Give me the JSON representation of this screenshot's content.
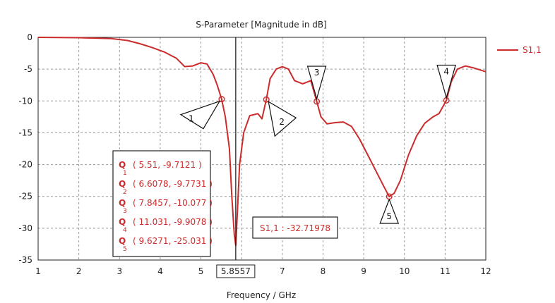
{
  "chart_data": {
    "type": "line",
    "title": "S-Parameter [Magnitude in dB]",
    "xlabel": "Frequency / GHz",
    "ylabel": "",
    "xlim": [
      1,
      12
    ],
    "ylim": [
      -35,
      0
    ],
    "x_ticks": [
      1,
      2,
      3,
      4,
      5,
      6,
      7,
      8,
      9,
      10,
      11,
      12
    ],
    "y_ticks": [
      0,
      -5,
      -10,
      -15,
      -20,
      -25,
      -30,
      -35
    ],
    "grid": true,
    "legend_position": "right",
    "series": [
      {
        "name": "S1,1",
        "color": "#cc2b2b",
        "points": [
          [
            1.0,
            0.0
          ],
          [
            2.0,
            -0.05
          ],
          [
            2.8,
            -0.2
          ],
          [
            3.2,
            -0.5
          ],
          [
            3.5,
            -1.0
          ],
          [
            3.8,
            -1.6
          ],
          [
            4.1,
            -2.3
          ],
          [
            4.4,
            -3.3
          ],
          [
            4.6,
            -4.6
          ],
          [
            4.8,
            -4.5
          ],
          [
            5.0,
            -4.0
          ],
          [
            5.15,
            -4.2
          ],
          [
            5.3,
            -5.8
          ],
          [
            5.4,
            -7.5
          ],
          [
            5.51,
            -9.7121
          ],
          [
            5.6,
            -12.5
          ],
          [
            5.7,
            -17.5
          ],
          [
            5.76,
            -25.0
          ],
          [
            5.82,
            -31.0
          ],
          [
            5.8557,
            -32.71978
          ],
          [
            5.9,
            -27.0
          ],
          [
            5.95,
            -20.0
          ],
          [
            6.05,
            -15.0
          ],
          [
            6.2,
            -12.3
          ],
          [
            6.4,
            -12.0
          ],
          [
            6.5,
            -12.8
          ],
          [
            6.6078,
            -9.7731
          ],
          [
            6.7,
            -6.5
          ],
          [
            6.85,
            -5.0
          ],
          [
            7.0,
            -4.6
          ],
          [
            7.15,
            -5.0
          ],
          [
            7.3,
            -6.8
          ],
          [
            7.5,
            -7.3
          ],
          [
            7.7,
            -6.8
          ],
          [
            7.8457,
            -10.077
          ],
          [
            7.95,
            -12.5
          ],
          [
            8.1,
            -13.6
          ],
          [
            8.3,
            -13.4
          ],
          [
            8.5,
            -13.3
          ],
          [
            8.7,
            -14.0
          ],
          [
            8.9,
            -16.0
          ],
          [
            9.1,
            -18.5
          ],
          [
            9.3,
            -21.0
          ],
          [
            9.5,
            -23.5
          ],
          [
            9.6271,
            -25.031
          ],
          [
            9.75,
            -24.5
          ],
          [
            9.9,
            -22.5
          ],
          [
            10.1,
            -18.5
          ],
          [
            10.3,
            -15.5
          ],
          [
            10.5,
            -13.5
          ],
          [
            10.7,
            -12.5
          ],
          [
            10.85,
            -12.0
          ],
          [
            11.031,
            -9.9078
          ],
          [
            11.15,
            -7.0
          ],
          [
            11.3,
            -5.0
          ],
          [
            11.5,
            -4.5
          ],
          [
            11.7,
            -4.8
          ],
          [
            12.0,
            -5.4
          ]
        ]
      }
    ],
    "vline": {
      "x": 5.8557,
      "label": "5.8557"
    },
    "markers": [
      {
        "id": "1",
        "x": 5.51,
        "y": -9.7121,
        "label": "( 5.51, -9.7121 )"
      },
      {
        "id": "2",
        "x": 6.6078,
        "y": -9.7731,
        "label": "( 6.6078, -9.7731 )"
      },
      {
        "id": "3",
        "x": 7.8457,
        "y": -10.077,
        "label": "( 7.8457, -10.077 )"
      },
      {
        "id": "4",
        "x": 11.031,
        "y": -9.9078,
        "label": "( 11.031, -9.9078 )"
      },
      {
        "id": "5",
        "x": 9.6271,
        "y": -25.031,
        "label": "( 9.6271, -25.031 )"
      }
    ],
    "marker_glyph": "Q",
    "min_annotation": "S1,1 : -32.71978"
  }
}
